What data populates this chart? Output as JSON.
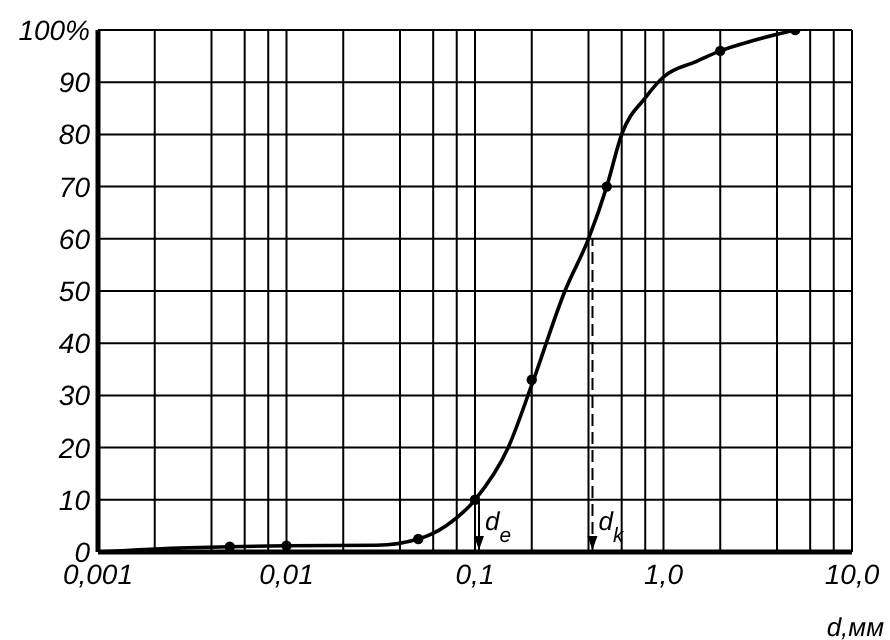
{
  "chart_data": {
    "type": "line",
    "xlabel": "d,мм",
    "log": "x",
    "grid": true,
    "xlim": [
      0.001,
      10
    ],
    "ylim": [
      0,
      100
    ],
    "xticks": [
      {
        "value": 0.001,
        "label": "0,001"
      },
      {
        "value": 0.002,
        "label": null
      },
      {
        "value": 0.004,
        "label": null
      },
      {
        "value": 0.006,
        "label": null
      },
      {
        "value": 0.008,
        "label": null
      },
      {
        "value": 0.01,
        "label": "0,01"
      },
      {
        "value": 0.02,
        "label": null
      },
      {
        "value": 0.04,
        "label": null
      },
      {
        "value": 0.06,
        "label": null
      },
      {
        "value": 0.08,
        "label": null
      },
      {
        "value": 0.1,
        "label": "0,1"
      },
      {
        "value": 0.2,
        "label": null
      },
      {
        "value": 0.4,
        "label": null
      },
      {
        "value": 0.6,
        "label": null
      },
      {
        "value": 0.8,
        "label": null
      },
      {
        "value": 1,
        "label": "1,0"
      },
      {
        "value": 2,
        "label": null
      },
      {
        "value": 4,
        "label": null
      },
      {
        "value": 6,
        "label": null
      },
      {
        "value": 8,
        "label": null
      },
      {
        "value": 10,
        "label": "10,0"
      }
    ],
    "yticks": [
      0,
      10,
      20,
      30,
      40,
      50,
      60,
      70,
      80,
      90,
      {
        "value": 100,
        "label": "100%"
      }
    ],
    "series": [
      {
        "color": "#000000",
        "marker": "none",
        "x": [
          0.001,
          0.003,
          0.005,
          0.01,
          0.03,
          0.05,
          0.07,
          0.1,
          0.15,
          0.2,
          0.3,
          0.4,
          0.5,
          0.6,
          0.8,
          1,
          1.5,
          2,
          3,
          5
        ],
        "values": [
          0,
          0.8,
          1,
          1.2,
          1.3,
          2.5,
          5,
          10,
          20,
          32,
          50,
          60,
          70,
          80,
          87,
          91,
          94,
          96,
          98,
          100
        ]
      },
      {
        "type": "scatter",
        "color": "#000000",
        "marker": "circle",
        "x": [
          0.005,
          0.01,
          0.05,
          0.1,
          0.2,
          0.5,
          2,
          5
        ],
        "values": [
          1,
          1.2,
          2.5,
          10,
          33,
          70,
          96,
          100
        ]
      }
    ],
    "annotations": [
      {
        "text": "d$_{e}$",
        "x": 0.105,
        "y": 10
      },
      {
        "text": "d$_{k}$",
        "x": 0.42,
        "y": 60
      }
    ]
  }
}
